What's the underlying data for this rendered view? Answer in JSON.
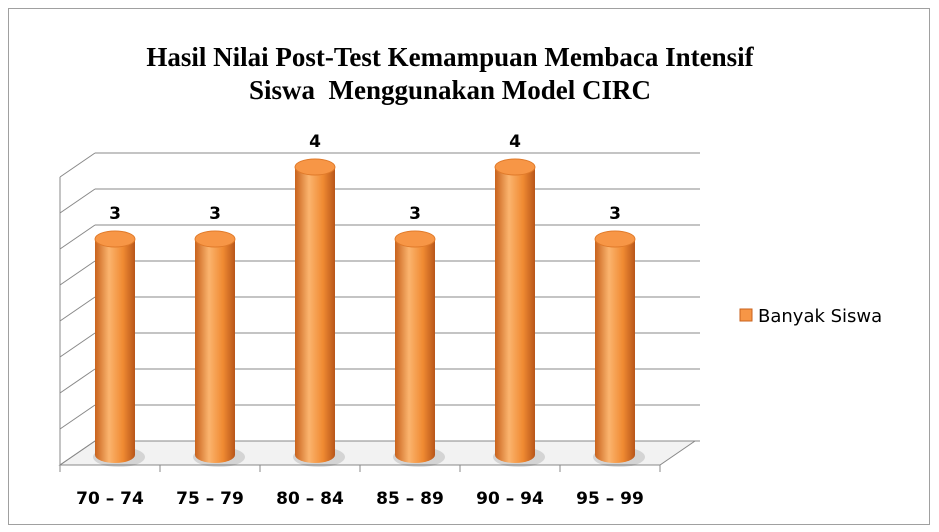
{
  "chart_data": {
    "type": "bar3d",
    "title": [
      "Hasil Nilai Post-Test Kemampuan Membaca Intensif",
      "Siswa  Menggunakan Model CIRC"
    ],
    "categories": [
      "70 – 74",
      "75 – 79",
      "80 – 84",
      "85 – 89",
      "90 – 94",
      "95 – 99"
    ],
    "series": [
      {
        "name": "Banyak Siswa",
        "color": "#f79646",
        "values": [
          3,
          3,
          4,
          3,
          4,
          3
        ]
      }
    ],
    "ylim": [
      0,
      4
    ],
    "yticks": [
      0,
      0.5,
      1,
      1.5,
      2,
      2.5,
      3,
      3.5,
      4
    ],
    "grid": true,
    "legend": "right"
  }
}
